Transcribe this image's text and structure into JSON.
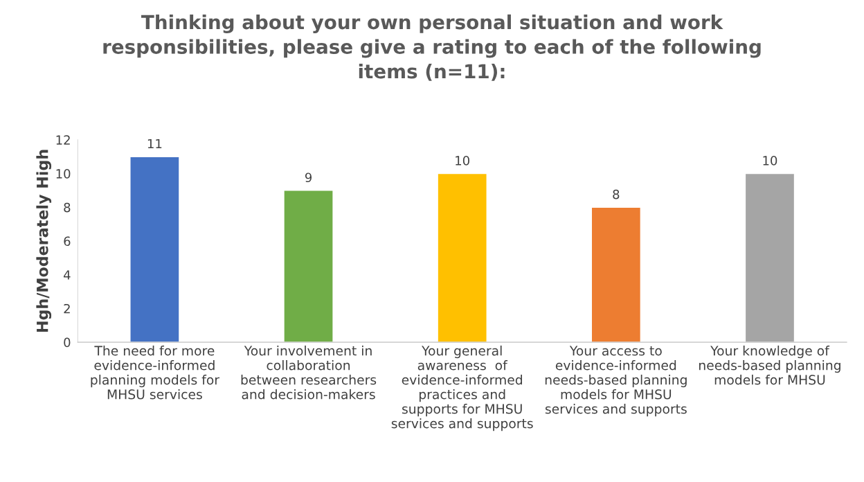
{
  "chart_data": {
    "type": "bar",
    "title": "Thinking about your own personal situation and work\nresponsibilities, please give a rating to each of the following\nitems (n=11):",
    "ylabel": "Hgh/Moderately High",
    "categories": [
      "The need for more\nevidence-informed\nplanning models for\nMHSU services",
      "Your involvement in\ncollaboration\nbetween researchers\nand decision-makers",
      "Your general\nawareness  of\nevidence-informed\npractices and\nsupports for MHSU\nservices and supports",
      "Your access to\nevidence-informed\nneeds-based planning\nmodels for MHSU\nservices and supports",
      "Your knowledge of\nneeds-based planning\nmodels for MHSU"
    ],
    "values": [
      11,
      9,
      10,
      8,
      10
    ],
    "colors": [
      "#4472c4",
      "#70ad47",
      "#ffc000",
      "#ed7d31",
      "#a5a5a5"
    ],
    "ylim": [
      0,
      12
    ],
    "yticks": [
      0,
      2,
      4,
      6,
      8,
      10,
      12
    ],
    "data_labels": true,
    "grid": false,
    "legend": false
  }
}
